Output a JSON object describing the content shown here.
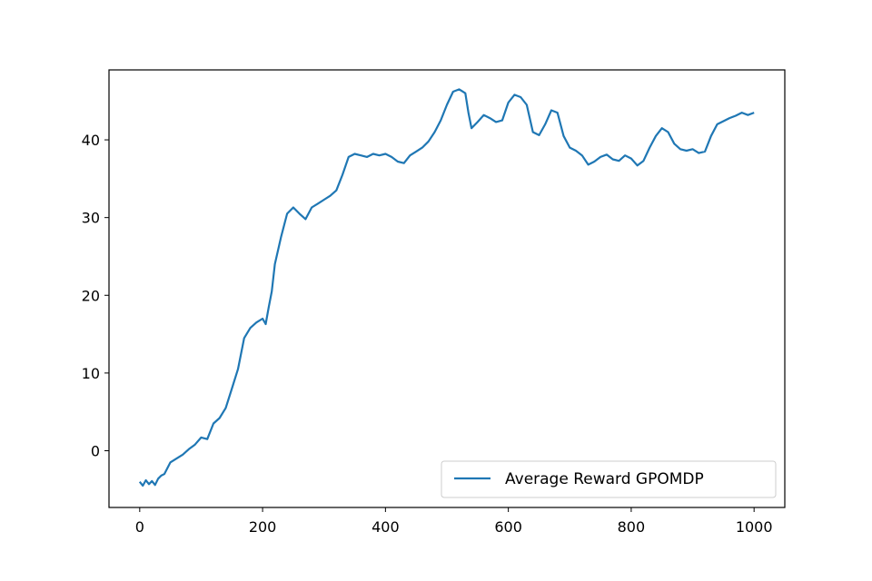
{
  "chart_data": {
    "type": "line",
    "title": "",
    "xlabel": "",
    "ylabel": "",
    "xlim": [
      -50,
      1050
    ],
    "ylim": [
      -7.3,
      49
    ],
    "xticks": [
      0,
      200,
      400,
      600,
      800,
      1000
    ],
    "yticks": [
      0,
      10,
      20,
      30,
      40
    ],
    "grid": false,
    "legend_position": "lower-right",
    "series": [
      {
        "name": "Average Reward GPOMDP",
        "color": "#1f77b4",
        "x": [
          0,
          5,
          10,
          15,
          20,
          25,
          30,
          35,
          40,
          50,
          60,
          70,
          80,
          90,
          100,
          110,
          120,
          130,
          140,
          150,
          160,
          170,
          180,
          190,
          200,
          205,
          210,
          215,
          220,
          230,
          240,
          250,
          260,
          270,
          280,
          290,
          300,
          310,
          320,
          330,
          340,
          350,
          360,
          370,
          380,
          390,
          400,
          410,
          420,
          430,
          440,
          450,
          460,
          470,
          480,
          490,
          500,
          510,
          520,
          530,
          535,
          540,
          550,
          560,
          570,
          580,
          590,
          600,
          610,
          620,
          630,
          640,
          650,
          660,
          670,
          680,
          690,
          700,
          710,
          720,
          730,
          740,
          750,
          760,
          770,
          780,
          790,
          800,
          810,
          820,
          830,
          840,
          850,
          860,
          870,
          880,
          890,
          900,
          910,
          920,
          930,
          940,
          950,
          960,
          970,
          980,
          990,
          1000
        ],
        "y": [
          -4.0,
          -4.5,
          -3.8,
          -4.3,
          -3.9,
          -4.4,
          -3.6,
          -3.2,
          -3.0,
          -1.5,
          -1.0,
          -0.5,
          0.2,
          0.8,
          1.7,
          1.5,
          3.5,
          4.2,
          5.5,
          8.0,
          10.5,
          14.5,
          15.8,
          16.5,
          17.0,
          16.3,
          18.5,
          20.5,
          24.0,
          27.5,
          30.5,
          31.3,
          30.5,
          29.8,
          31.3,
          31.8,
          32.3,
          32.8,
          33.5,
          35.5,
          37.8,
          38.2,
          38.0,
          37.8,
          38.2,
          38.0,
          38.2,
          37.8,
          37.2,
          37.0,
          38.0,
          38.5,
          39.0,
          39.8,
          41.0,
          42.5,
          44.5,
          46.2,
          46.5,
          46.0,
          43.5,
          41.5,
          42.3,
          43.2,
          42.8,
          42.3,
          42.5,
          44.8,
          45.8,
          45.5,
          44.5,
          41.0,
          40.6,
          42.0,
          43.8,
          43.5,
          40.5,
          39.0,
          38.6,
          38.0,
          36.8,
          37.2,
          37.8,
          38.1,
          37.5,
          37.3,
          38.0,
          37.6,
          36.7,
          37.3,
          39.0,
          40.5,
          41.5,
          41.0,
          39.5,
          38.8,
          38.6,
          38.8,
          38.3,
          38.5,
          40.5,
          42.0,
          42.4,
          42.8,
          43.1,
          43.5,
          43.2,
          43.5
        ]
      }
    ]
  }
}
